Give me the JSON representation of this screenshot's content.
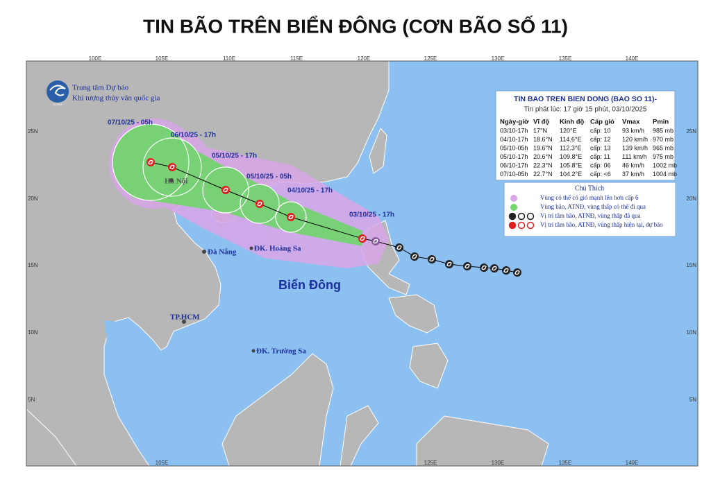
{
  "header": {
    "title": "TIN BÃO TRÊN BIỂN ĐÔNG (CƠN BÃO SỐ 11)"
  },
  "map": {
    "lon_top": [
      "100E",
      "105E",
      "110E",
      "115E",
      "120E",
      "125E",
      "130E",
      "135E",
      "140E"
    ],
    "lon_bottom": [
      "105E",
      "125E",
      "130E",
      "135E",
      "140E"
    ],
    "lat": [
      "25N",
      "20N",
      "15N",
      "10N",
      "5N"
    ]
  },
  "agency": {
    "name": "Trung tâm Dự báo",
    "subname": "Khí tượng thủy văn quốc gia",
    "logo": "NCHMF"
  },
  "places": [
    "Hà Nội",
    "Đà Nẵng",
    "ĐK. Hoàng Sa",
    "TP.HCM",
    "ĐK. Trường Sa"
  ],
  "sea_label": "Biển Đông",
  "track_labels": [
    "07/10/25 - 05h",
    "06/10/25 - 17h",
    "05/10/25 - 17h",
    "05/10/25 - 05h",
    "04/10/25 - 17h",
    "03/10/25 - 17h"
  ],
  "info": {
    "title": "TIN BAO TREN BIEN DONG (BAO SO 11)-",
    "issued": "Tin phát lúc: 17 giờ 15 phút, 03/10/2025",
    "columns": [
      "Ngày-giờ",
      "Vĩ độ",
      "Kinh độ",
      "Cấp gió",
      "Vmax",
      "Pmin"
    ],
    "rows": [
      [
        "03/10-17h",
        "17°N",
        "120°E",
        "cấp: 10",
        "93 km/h",
        "985 mb"
      ],
      [
        "04/10-17h",
        "18.6°N",
        "114.6°E",
        "cấp: 12",
        "120 km/h",
        "970 mb"
      ],
      [
        "05/10-05h",
        "19.6°N",
        "112.3°E",
        "cấp: 13",
        "139 km/h",
        "965 mb"
      ],
      [
        "05/10-17h",
        "20.6°N",
        "109.8°E",
        "cấp: 11",
        "111 km/h",
        "975 mb"
      ],
      [
        "06/10-17h",
        "22.3°N",
        "105.8°E",
        "cấp: 06",
        "46 km/h",
        "1002 mb"
      ],
      [
        "07/10-05h",
        "22.7°N",
        "104.2°E",
        "cấp: <6",
        "37 km/h",
        "1004 mb"
      ]
    ]
  },
  "legend": {
    "title": "Chú Thích",
    "items": [
      "Vùng có thể có gió mạnh lên hơn cấp 6",
      "Vùng bão, ATNĐ, vùng thấp có thể đi qua",
      "Vị trí tâm bão, ATNĐ, vùng thấp đã qua",
      "Vị trí tâm bão, ATNĐ, vùng thấp hiện tại, dự báo"
    ]
  }
}
